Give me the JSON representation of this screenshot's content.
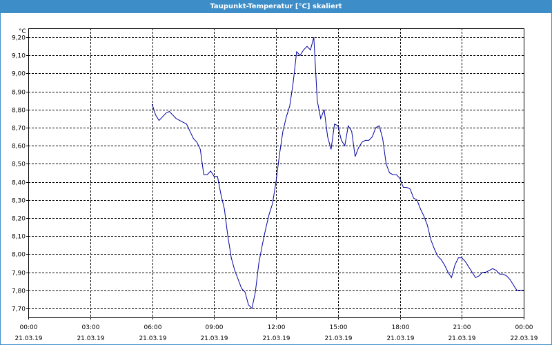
{
  "window": {
    "title": "Taupunkt-Temperatur [°C] skaliert"
  },
  "chart_data": {
    "type": "line",
    "ylabel": "°C",
    "ylim": [
      7.65,
      9.25
    ],
    "y_ticks": [
      "9,20",
      "9,10",
      "9,00",
      "8,90",
      "8,80",
      "8,70",
      "8,60",
      "8,50",
      "8,40",
      "8,30",
      "8,20",
      "8,10",
      "8,00",
      "7,90",
      "7,80",
      "7,70"
    ],
    "y_tick_values": [
      9.2,
      9.1,
      9.0,
      8.9,
      8.8,
      8.7,
      8.6,
      8.5,
      8.4,
      8.3,
      8.2,
      8.1,
      8.0,
      7.9,
      7.8,
      7.7
    ],
    "xlim": [
      "21.03.19 00:00",
      "22.03.19 00:00"
    ],
    "x_ticks": [
      {
        "time": "00:00",
        "date": "21.03.19"
      },
      {
        "time": "03:00",
        "date": "21.03.19"
      },
      {
        "time": "06:00",
        "date": "21.03.19"
      },
      {
        "time": "09:00",
        "date": "21.03.19"
      },
      {
        "time": "12:00",
        "date": "21.03.19"
      },
      {
        "time": "15:00",
        "date": "21.03.19"
      },
      {
        "time": "18:00",
        "date": "21.03.19"
      },
      {
        "time": "21:00",
        "date": "21.03.19"
      },
      {
        "time": "00:00",
        "date": "22.03.19"
      }
    ],
    "grid": true,
    "series_color": "#0000a0",
    "x": [
      "21.03.19 06:00",
      "21.03.19 06:10",
      "21.03.19 06:20",
      "21.03.19 06:30",
      "21.03.19 06:40",
      "21.03.19 06:50",
      "21.03.19 07:00",
      "21.03.19 07:10",
      "21.03.19 07:20",
      "21.03.19 07:30",
      "21.03.19 07:40",
      "21.03.19 07:50",
      "21.03.19 08:00",
      "21.03.19 08:10",
      "21.03.19 08:20",
      "21.03.19 08:30",
      "21.03.19 08:40",
      "21.03.19 08:50",
      "21.03.19 09:00",
      "21.03.19 09:10",
      "21.03.19 09:20",
      "21.03.19 09:30",
      "21.03.19 09:40",
      "21.03.19 09:50",
      "21.03.19 10:00",
      "21.03.19 10:10",
      "21.03.19 10:20",
      "21.03.19 10:30",
      "21.03.19 10:40",
      "21.03.19 10:50",
      "21.03.19 11:00",
      "21.03.19 11:10",
      "21.03.19 11:20",
      "21.03.19 11:30",
      "21.03.19 11:40",
      "21.03.19 11:50",
      "21.03.19 12:00",
      "21.03.19 12:10",
      "21.03.19 12:20",
      "21.03.19 12:30",
      "21.03.19 12:40",
      "21.03.19 12:50",
      "21.03.19 13:00",
      "21.03.19 13:10",
      "21.03.19 13:20",
      "21.03.19 13:30",
      "21.03.19 13:40",
      "21.03.19 13:50",
      "21.03.19 14:00",
      "21.03.19 14:10",
      "21.03.19 14:20",
      "21.03.19 14:30",
      "21.03.19 14:40",
      "21.03.19 14:50",
      "21.03.19 15:00",
      "21.03.19 15:10",
      "21.03.19 15:20",
      "21.03.19 15:30",
      "21.03.19 15:40",
      "21.03.19 15:50",
      "21.03.19 16:00",
      "21.03.19 16:10",
      "21.03.19 16:20",
      "21.03.19 16:30",
      "21.03.19 16:40",
      "21.03.19 16:50",
      "21.03.19 17:00",
      "21.03.19 17:10",
      "21.03.19 17:20",
      "21.03.19 17:30",
      "21.03.19 17:40",
      "21.03.19 17:50",
      "21.03.19 18:00",
      "21.03.19 18:10",
      "21.03.19 18:20",
      "21.03.19 18:30",
      "21.03.19 18:40",
      "21.03.19 18:50",
      "21.03.19 19:00",
      "21.03.19 19:10",
      "21.03.19 19:20",
      "21.03.19 19:30",
      "21.03.19 19:40",
      "21.03.19 19:50",
      "21.03.19 20:00",
      "21.03.19 20:10",
      "21.03.19 20:20",
      "21.03.19 20:30",
      "21.03.19 20:40",
      "21.03.19 20:50",
      "21.03.19 21:00",
      "21.03.19 21:10",
      "21.03.19 21:20",
      "21.03.19 21:30",
      "21.03.19 21:40",
      "21.03.19 21:50",
      "21.03.19 22:00",
      "21.03.19 22:10",
      "21.03.19 22:20",
      "21.03.19 22:30",
      "21.03.19 22:40",
      "21.03.19 22:50",
      "21.03.19 23:00",
      "21.03.19 23:10",
      "21.03.19 23:20",
      "21.03.19 23:30",
      "21.03.19 23:40",
      "21.03.19 23:50",
      "22.03.19 00:00"
    ],
    "values": [
      8.83,
      8.77,
      8.74,
      8.76,
      8.78,
      8.79,
      8.77,
      8.75,
      8.74,
      8.73,
      8.72,
      8.68,
      8.64,
      8.62,
      8.58,
      8.44,
      8.44,
      8.46,
      8.43,
      8.43,
      8.33,
      8.25,
      8.1,
      7.98,
      7.91,
      7.86,
      7.81,
      7.79,
      7.72,
      7.7,
      7.79,
      7.95,
      8.05,
      8.14,
      8.22,
      8.28,
      8.4,
      8.55,
      8.68,
      8.76,
      8.82,
      8.95,
      9.12,
      9.1,
      9.13,
      9.15,
      9.13,
      9.2,
      8.85,
      8.75,
      8.8,
      8.65,
      8.58,
      8.72,
      8.71,
      8.63,
      8.6,
      8.71,
      8.68,
      8.54,
      8.59,
      8.62,
      8.63,
      8.63,
      8.65,
      8.7,
      8.71,
      8.64,
      8.5,
      8.45,
      8.44,
      8.44,
      8.42,
      8.37,
      8.37,
      8.36,
      8.31,
      8.3,
      8.25,
      8.21,
      8.16,
      8.08,
      8.03,
      7.99,
      7.97,
      7.94,
      7.9,
      7.87,
      7.94,
      7.98,
      7.98,
      7.96,
      7.93,
      7.9,
      7.87,
      7.88,
      7.9,
      7.9,
      7.91,
      7.92,
      7.91,
      7.89,
      7.89,
      7.88,
      7.86,
      7.83,
      7.8,
      7.8,
      7.8
    ]
  }
}
